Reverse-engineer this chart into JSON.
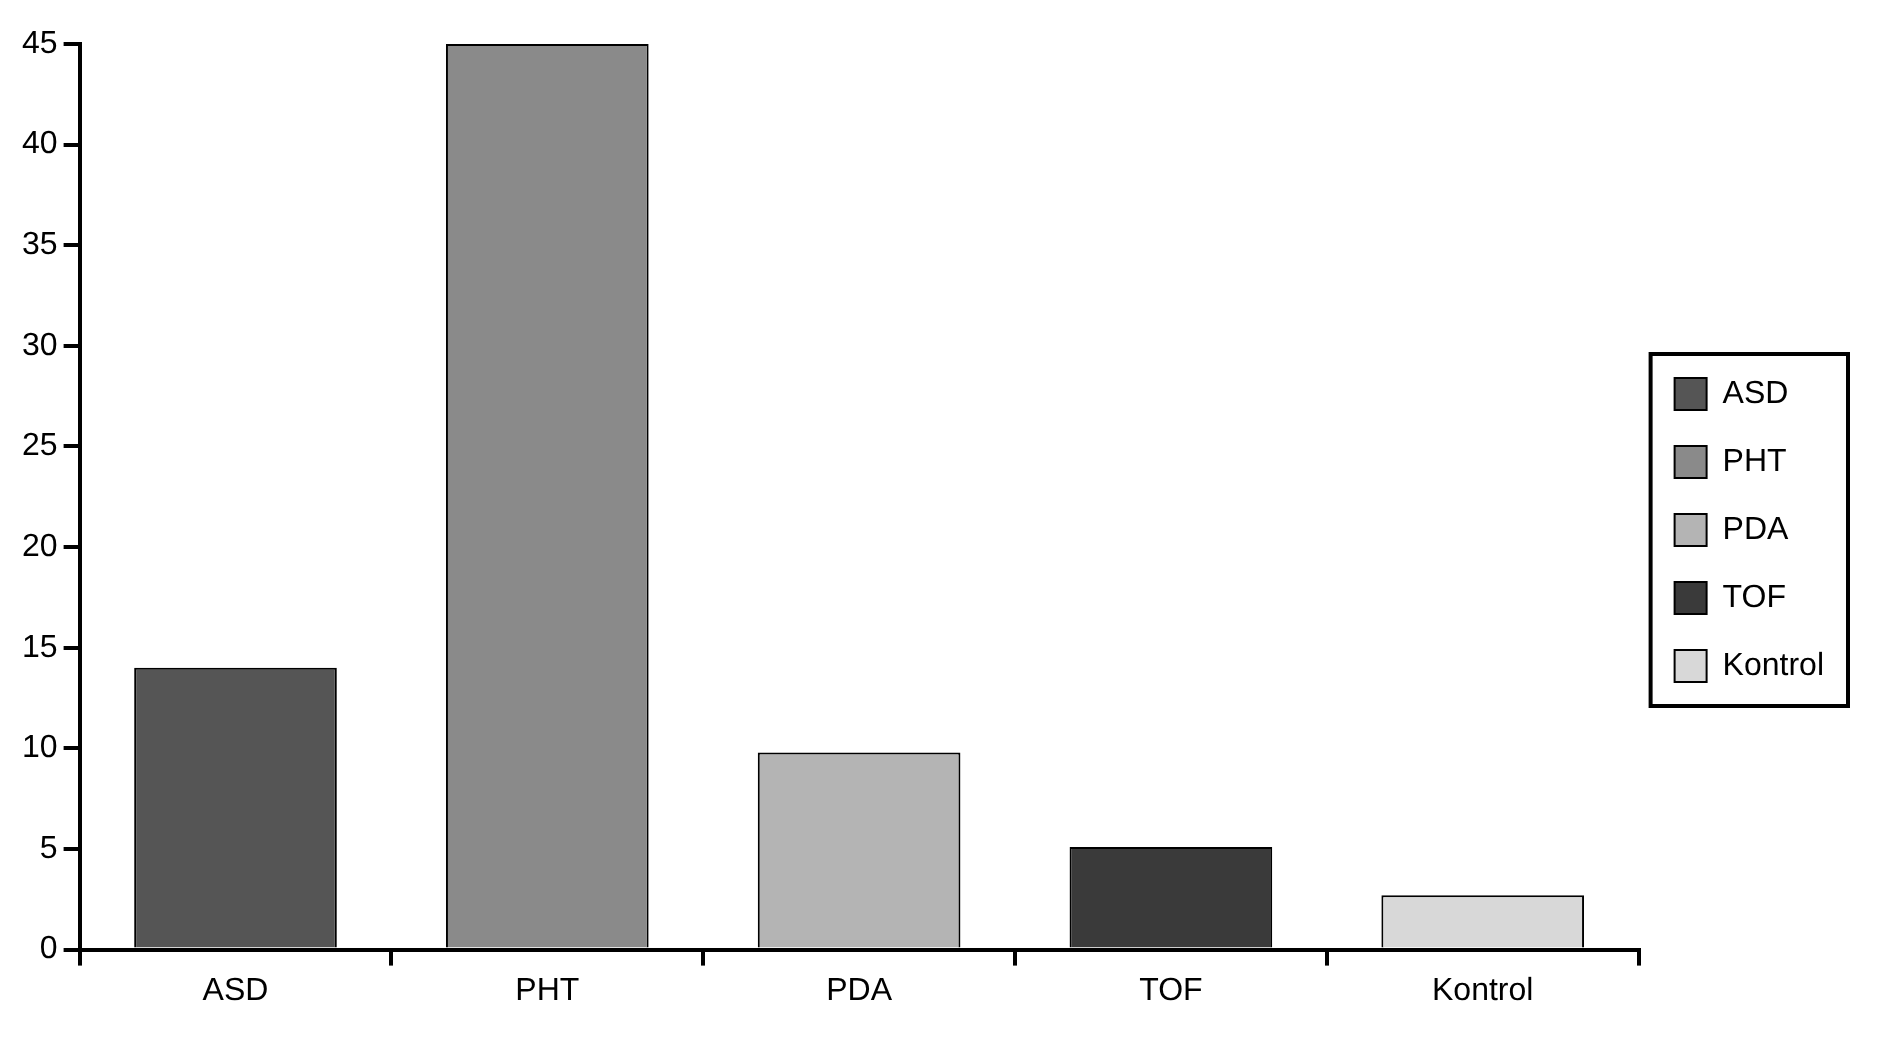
{
  "chart_data": {
    "type": "bar",
    "categories": [
      "ASD",
      "PHT",
      "PDA",
      "TOF",
      "Kontrol"
    ],
    "series": [
      {
        "name": "ASD",
        "color": "#555555",
        "values": [
          14,
          null,
          null,
          null,
          null
        ]
      },
      {
        "name": "PHT",
        "color": "#8a8a8a",
        "values": [
          null,
          45,
          null,
          null,
          null
        ]
      },
      {
        "name": "PDA",
        "color": "#b4b4b4",
        "values": [
          null,
          null,
          9.8,
          null,
          null
        ]
      },
      {
        "name": "TOF",
        "color": "#3a3a3a",
        "values": [
          null,
          null,
          null,
          5.1,
          null
        ]
      },
      {
        "name": "Kontrol",
        "color": "#d8d8d8",
        "values": [
          null,
          null,
          null,
          null,
          2.7
        ]
      }
    ],
    "ylim": [
      0,
      45
    ],
    "yticks": [
      0,
      5,
      10,
      15,
      20,
      25,
      30,
      35,
      40,
      45
    ],
    "grid": false,
    "legend": "right"
  }
}
